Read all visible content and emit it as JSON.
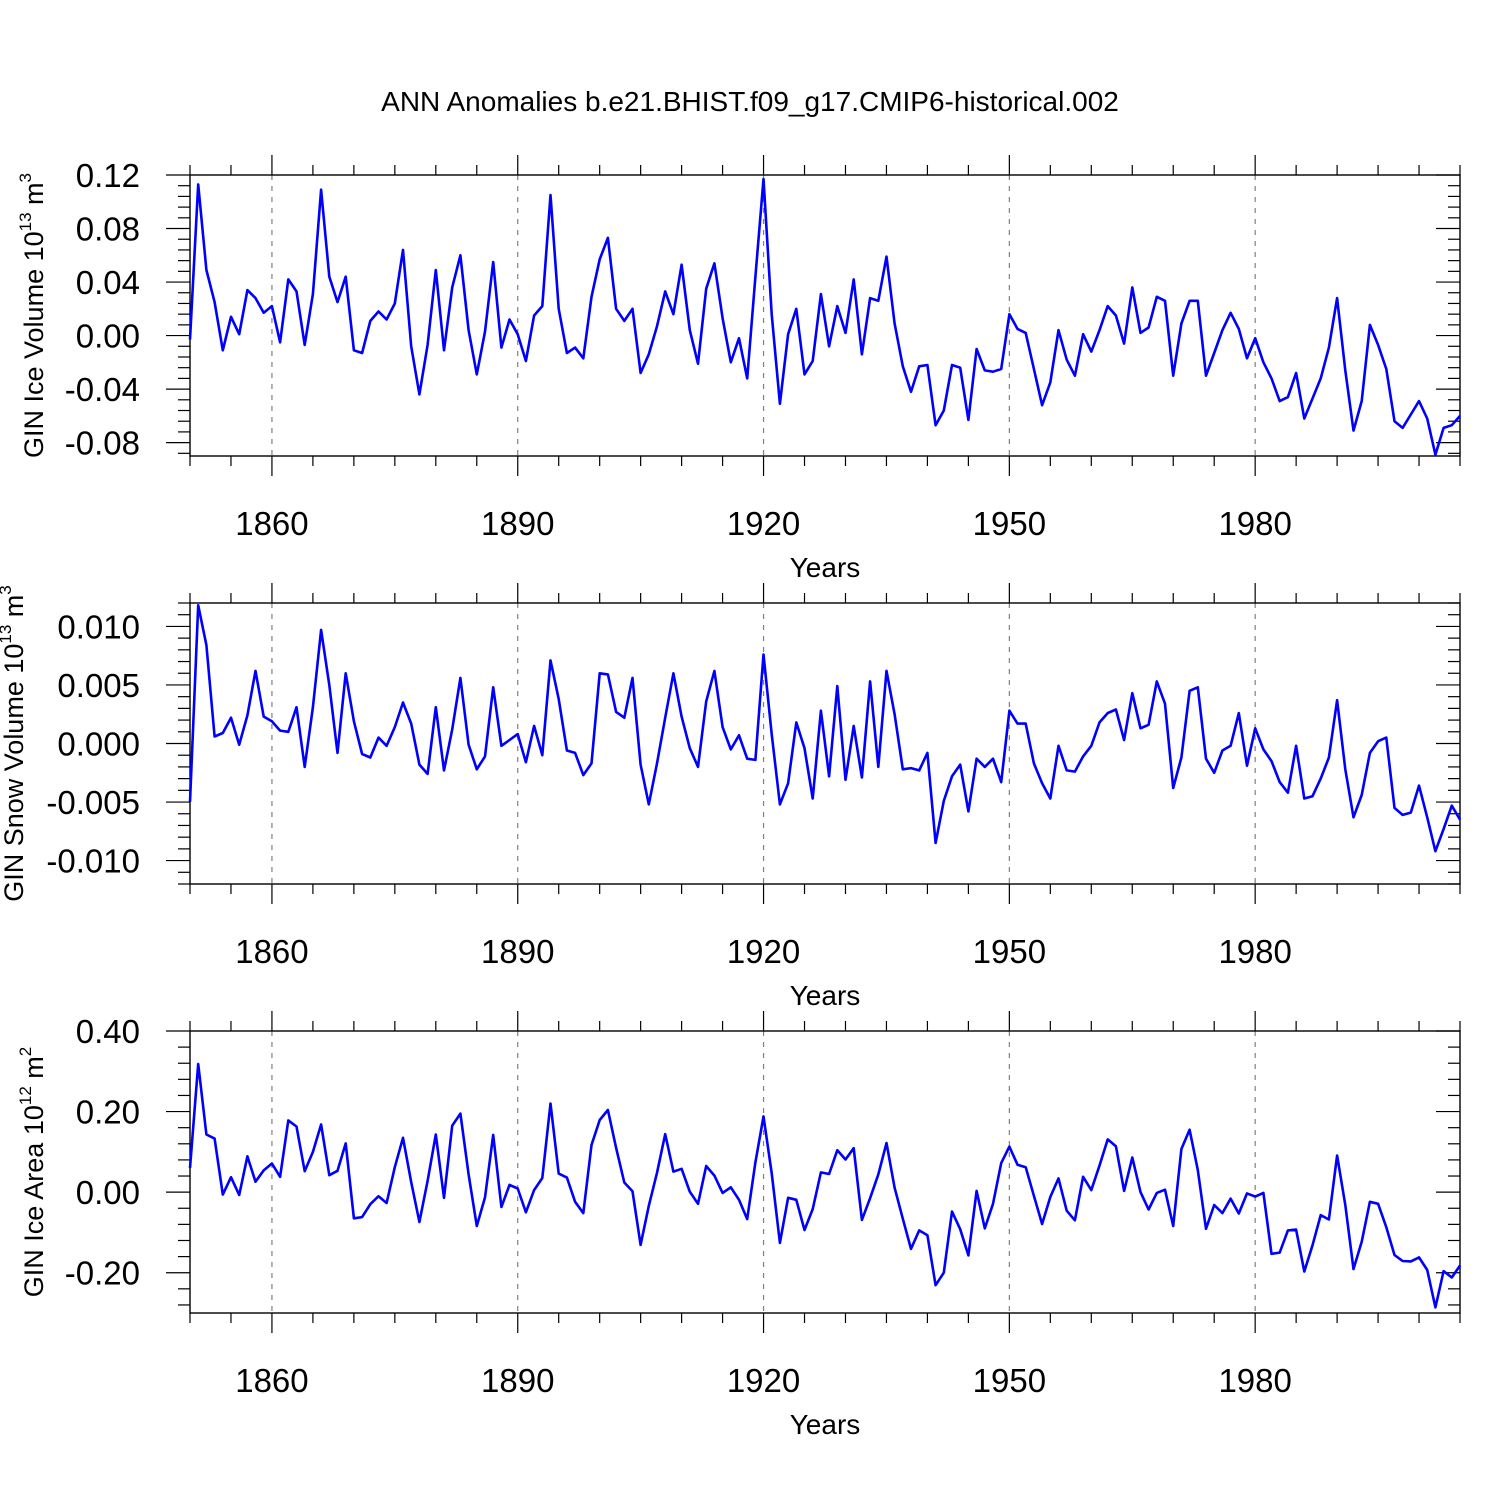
{
  "figure": {
    "title": "ANN Anomalies b.e21.BHIST.f09_g17.CMIP6-historical.002",
    "line_color": "#0000ff",
    "grid_color": "#808080"
  },
  "chart_data": [
    {
      "type": "line",
      "ylabel": {
        "main": "GIN Ice Volume 10",
        "exponent": "13",
        "unit": " m",
        "unit_exponent": "3"
      },
      "xlabel": "Years",
      "xlim": [
        1850,
        2005
      ],
      "ylim": [
        -0.09,
        0.12
      ],
      "yticks": [
        0.12,
        0.08,
        0.04,
        0.0,
        -0.04,
        -0.08
      ],
      "ytick_labels": [
        "0.12",
        "0.08",
        "0.04",
        "0.00",
        "-0.04",
        "-0.08"
      ],
      "xticks": [
        1860,
        1890,
        1920,
        1950,
        1980
      ],
      "xtick_labels": [
        "1860",
        "1890",
        "1920",
        "1950",
        "1980"
      ],
      "start_year": 1850,
      "values": [
        -0.003,
        0.113,
        0.049,
        0.025,
        -0.011,
        0.014,
        0.001,
        0.034,
        0.028,
        0.017,
        0.022,
        -0.005,
        0.042,
        0.033,
        -0.007,
        0.031,
        0.109,
        0.044,
        0.025,
        0.044,
        -0.011,
        -0.013,
        0.011,
        0.018,
        0.012,
        0.024,
        0.064,
        -0.008,
        -0.044,
        -0.007,
        0.049,
        -0.011,
        0.036,
        0.06,
        0.004,
        -0.029,
        0.003,
        0.055,
        -0.009,
        0.012,
        0.001,
        -0.019,
        0.015,
        0.022,
        0.105,
        0.02,
        -0.013,
        -0.009,
        -0.017,
        0.029,
        0.057,
        0.073,
        0.02,
        0.011,
        0.02,
        -0.028,
        -0.014,
        0.007,
        0.033,
        0.016,
        0.053,
        0.004,
        -0.021,
        0.035,
        0.054,
        0.013,
        -0.02,
        -0.002,
        -0.032,
        0.044,
        0.117,
        0.016,
        -0.051,
        0.001,
        0.02,
        -0.029,
        -0.019,
        0.031,
        -0.008,
        0.022,
        0.002,
        0.042,
        -0.014,
        0.028,
        0.026,
        0.059,
        0.009,
        -0.023,
        -0.042,
        -0.023,
        -0.022,
        -0.067,
        -0.056,
        -0.022,
        -0.024,
        -0.063,
        -0.01,
        -0.026,
        -0.027,
        -0.025,
        0.016,
        0.005,
        0.002,
        -0.025,
        -0.052,
        -0.035,
        0.004,
        -0.018,
        -0.03,
        0.001,
        -0.012,
        0.004,
        0.022,
        0.015,
        -0.006,
        0.036,
        0.002,
        0.006,
        0.029,
        0.026,
        -0.03,
        0.009,
        0.026,
        0.026,
        -0.03,
        -0.013,
        0.004,
        0.017,
        0.005,
        -0.017,
        -0.002,
        -0.02,
        -0.032,
        -0.049,
        -0.046,
        -0.028,
        -0.062,
        -0.047,
        -0.032,
        -0.009,
        0.028,
        -0.026,
        -0.071,
        -0.049,
        0.008,
        -0.007,
        -0.025,
        -0.064,
        -0.069,
        -0.059,
        -0.049,
        -0.062,
        -0.089,
        -0.069,
        -0.067,
        -0.06
      ]
    },
    {
      "type": "line",
      "ylabel": {
        "main": "GIN Snow Volume 10",
        "exponent": "13",
        "unit": " m",
        "unit_exponent": "3"
      },
      "xlabel": "Years",
      "xlim": [
        1850,
        2005
      ],
      "ylim": [
        -0.012,
        0.012
      ],
      "yticks": [
        0.01,
        0.005,
        0.0,
        -0.005,
        -0.01
      ],
      "ytick_labels": [
        "0.010",
        "0.005",
        "0.000",
        "-0.005",
        "-0.010"
      ],
      "xticks": [
        1860,
        1890,
        1920,
        1950,
        1980
      ],
      "xtick_labels": [
        "1860",
        "1890",
        "1920",
        "1950",
        "1980"
      ],
      "start_year": 1850,
      "values": [
        -0.005,
        0.0118,
        0.0084,
        0.0006,
        0.0009,
        0.0022,
        -0.0001,
        0.0024,
        0.0062,
        0.0023,
        0.0019,
        0.0011,
        0.001,
        0.0031,
        -0.002,
        0.0031,
        0.0097,
        0.005,
        -0.0008,
        0.006,
        0.0019,
        -0.0009,
        -0.0012,
        0.0005,
        -0.0002,
        0.0014,
        0.0035,
        0.0017,
        -0.0018,
        -0.0026,
        0.0031,
        -0.0023,
        0.0012,
        0.0056,
        -0.0001,
        -0.0022,
        -0.0011,
        0.0048,
        -0.0002,
        0.0003,
        0.0008,
        -0.0016,
        0.0015,
        -0.001,
        0.0071,
        0.0038,
        -0.0006,
        -0.0008,
        -0.0027,
        -0.0017,
        0.006,
        0.0059,
        0.0027,
        0.0022,
        0.0056,
        -0.0018,
        -0.0052,
        -0.0017,
        0.0022,
        0.006,
        0.0023,
        -0.0004,
        -0.002,
        0.0036,
        0.0062,
        0.0014,
        -0.0005,
        0.0007,
        -0.0013,
        -0.0014,
        0.0076,
        0.0008,
        -0.0052,
        -0.0034,
        0.0018,
        -0.0004,
        -0.0047,
        0.0028,
        -0.0028,
        0.0049,
        -0.0031,
        0.0015,
        -0.0029,
        0.0053,
        -0.002,
        0.0062,
        0.0025,
        -0.0022,
        -0.0021,
        -0.0023,
        -0.0008,
        -0.0085,
        -0.0049,
        -0.0028,
        -0.0018,
        -0.0058,
        -0.0013,
        -0.002,
        -0.0013,
        -0.0033,
        0.0028,
        0.0017,
        0.0017,
        -0.0017,
        -0.0034,
        -0.0047,
        -0.0002,
        -0.0023,
        -0.0024,
        -0.0011,
        -0.0002,
        0.0018,
        0.0026,
        0.0029,
        0.0003,
        0.0043,
        0.0013,
        0.0016,
        0.0053,
        0.0034,
        -0.0038,
        -0.0012,
        0.0045,
        0.0048,
        -0.0013,
        -0.0025,
        -0.0006,
        -0.0002,
        0.0026,
        -0.0019,
        0.0013,
        -0.0005,
        -0.0015,
        -0.0033,
        -0.0042,
        -0.0002,
        -0.0047,
        -0.0045,
        -0.003,
        -0.0012,
        0.0037,
        -0.0022,
        -0.0063,
        -0.0044,
        -0.0008,
        0.0002,
        0.0005,
        -0.0055,
        -0.0061,
        -0.0059,
        -0.0036,
        -0.0063,
        -0.0092,
        -0.0073,
        -0.0053,
        -0.0065
      ]
    },
    {
      "type": "line",
      "ylabel": {
        "main": "GIN Ice Area 10",
        "exponent": "12",
        "unit": " m",
        "unit_exponent": "2"
      },
      "xlabel": "Years",
      "xlim": [
        1850,
        2005
      ],
      "ylim": [
        -0.3,
        0.4
      ],
      "yticks": [
        0.4,
        0.2,
        0.0,
        -0.2
      ],
      "ytick_labels": [
        "0.40",
        "0.20",
        "0.00",
        "-0.20"
      ],
      "xticks": [
        1860,
        1890,
        1920,
        1950,
        1980
      ],
      "xtick_labels": [
        "1860",
        "1890",
        "1920",
        "1950",
        "1980"
      ],
      "start_year": 1850,
      "values": [
        0.06,
        0.318,
        0.143,
        0.133,
        -0.006,
        0.037,
        -0.007,
        0.089,
        0.026,
        0.054,
        0.071,
        0.038,
        0.178,
        0.163,
        0.052,
        0.1,
        0.168,
        0.042,
        0.053,
        0.121,
        -0.065,
        -0.062,
        -0.03,
        -0.01,
        -0.027,
        0.062,
        0.135,
        0.025,
        -0.074,
        0.028,
        0.143,
        -0.014,
        0.165,
        0.195,
        0.044,
        -0.084,
        -0.013,
        0.142,
        -0.037,
        0.018,
        0.009,
        -0.05,
        0.005,
        0.035,
        0.22,
        0.046,
        0.036,
        -0.024,
        -0.052,
        0.117,
        0.179,
        0.204,
        0.11,
        0.024,
        0.002,
        -0.131,
        -0.034,
        0.048,
        0.144,
        0.051,
        0.058,
        0.001,
        -0.029,
        0.065,
        0.041,
        -0.002,
        0.012,
        -0.019,
        -0.067,
        0.074,
        0.188,
        0.047,
        -0.126,
        -0.014,
        -0.019,
        -0.094,
        -0.042,
        0.049,
        0.045,
        0.104,
        0.081,
        0.109,
        -0.069,
        -0.015,
        0.044,
        0.122,
        0.011,
        -0.066,
        -0.141,
        -0.095,
        -0.107,
        -0.231,
        -0.2,
        -0.048,
        -0.092,
        -0.157,
        0.003,
        -0.09,
        -0.029,
        0.072,
        0.113,
        0.068,
        0.062,
        -0.009,
        -0.079,
        -0.012,
        0.034,
        -0.046,
        -0.07,
        0.038,
        0.005,
        0.066,
        0.131,
        0.114,
        0.003,
        0.086,
        0.0,
        -0.043,
        -0.002,
        0.006,
        -0.084,
        0.107,
        0.155,
        0.055,
        -0.091,
        -0.032,
        -0.052,
        -0.016,
        -0.053,
        -0.003,
        -0.011,
        -0.002,
        -0.153,
        -0.15,
        -0.095,
        -0.093,
        -0.197,
        -0.132,
        -0.057,
        -0.068,
        0.091,
        -0.032,
        -0.191,
        -0.123,
        -0.024,
        -0.029,
        -0.087,
        -0.156,
        -0.171,
        -0.172,
        -0.162,
        -0.193,
        -0.286,
        -0.196,
        -0.212,
        -0.182
      ]
    }
  ]
}
